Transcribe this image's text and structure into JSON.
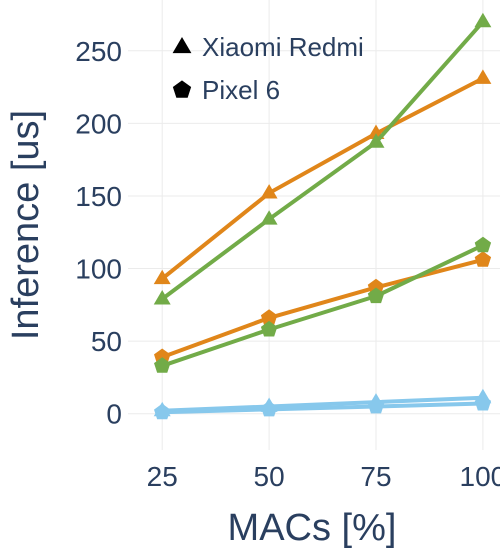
{
  "chart_data": {
    "type": "line",
    "title": "",
    "xlabel": "MACs [%]",
    "ylabel": "Inference [us]",
    "x": [
      25,
      50,
      75,
      100
    ],
    "x_ticks": [
      "25",
      "50",
      "75",
      "100"
    ],
    "y_ticks": [
      "0",
      "50",
      "100",
      "150",
      "200",
      "250"
    ],
    "ylim": [
      -25,
      285
    ],
    "xlim": [
      17,
      104
    ],
    "grid": true,
    "legend": {
      "placement": "top-left",
      "entries": [
        {
          "label": "Xiaomi Redmi",
          "marker": "triangle"
        },
        {
          "label": "Pixel 6",
          "marker": "pentagon"
        }
      ]
    },
    "series": [
      {
        "device": "Xiaomi Redmi",
        "marker": "triangle",
        "color": "#e0861a",
        "values": [
          93,
          152,
          193,
          231
        ]
      },
      {
        "device": "Xiaomi Redmi",
        "marker": "triangle",
        "color": "#72ab48",
        "values": [
          79,
          134,
          187,
          270
        ]
      },
      {
        "device": "Pixel 6",
        "marker": "pentagon",
        "color": "#e0861a",
        "values": [
          39,
          66,
          87,
          106
        ]
      },
      {
        "device": "Pixel 6",
        "marker": "pentagon",
        "color": "#72ab48",
        "values": [
          33,
          58,
          81,
          116
        ]
      },
      {
        "device": "Xiaomi Redmi",
        "marker": "triangle",
        "color": "#87c8ec",
        "values": [
          2,
          5,
          8,
          11
        ]
      },
      {
        "device": "Pixel 6",
        "marker": "pentagon",
        "color": "#87c8ec",
        "values": [
          1,
          3,
          5,
          7
        ]
      }
    ]
  }
}
